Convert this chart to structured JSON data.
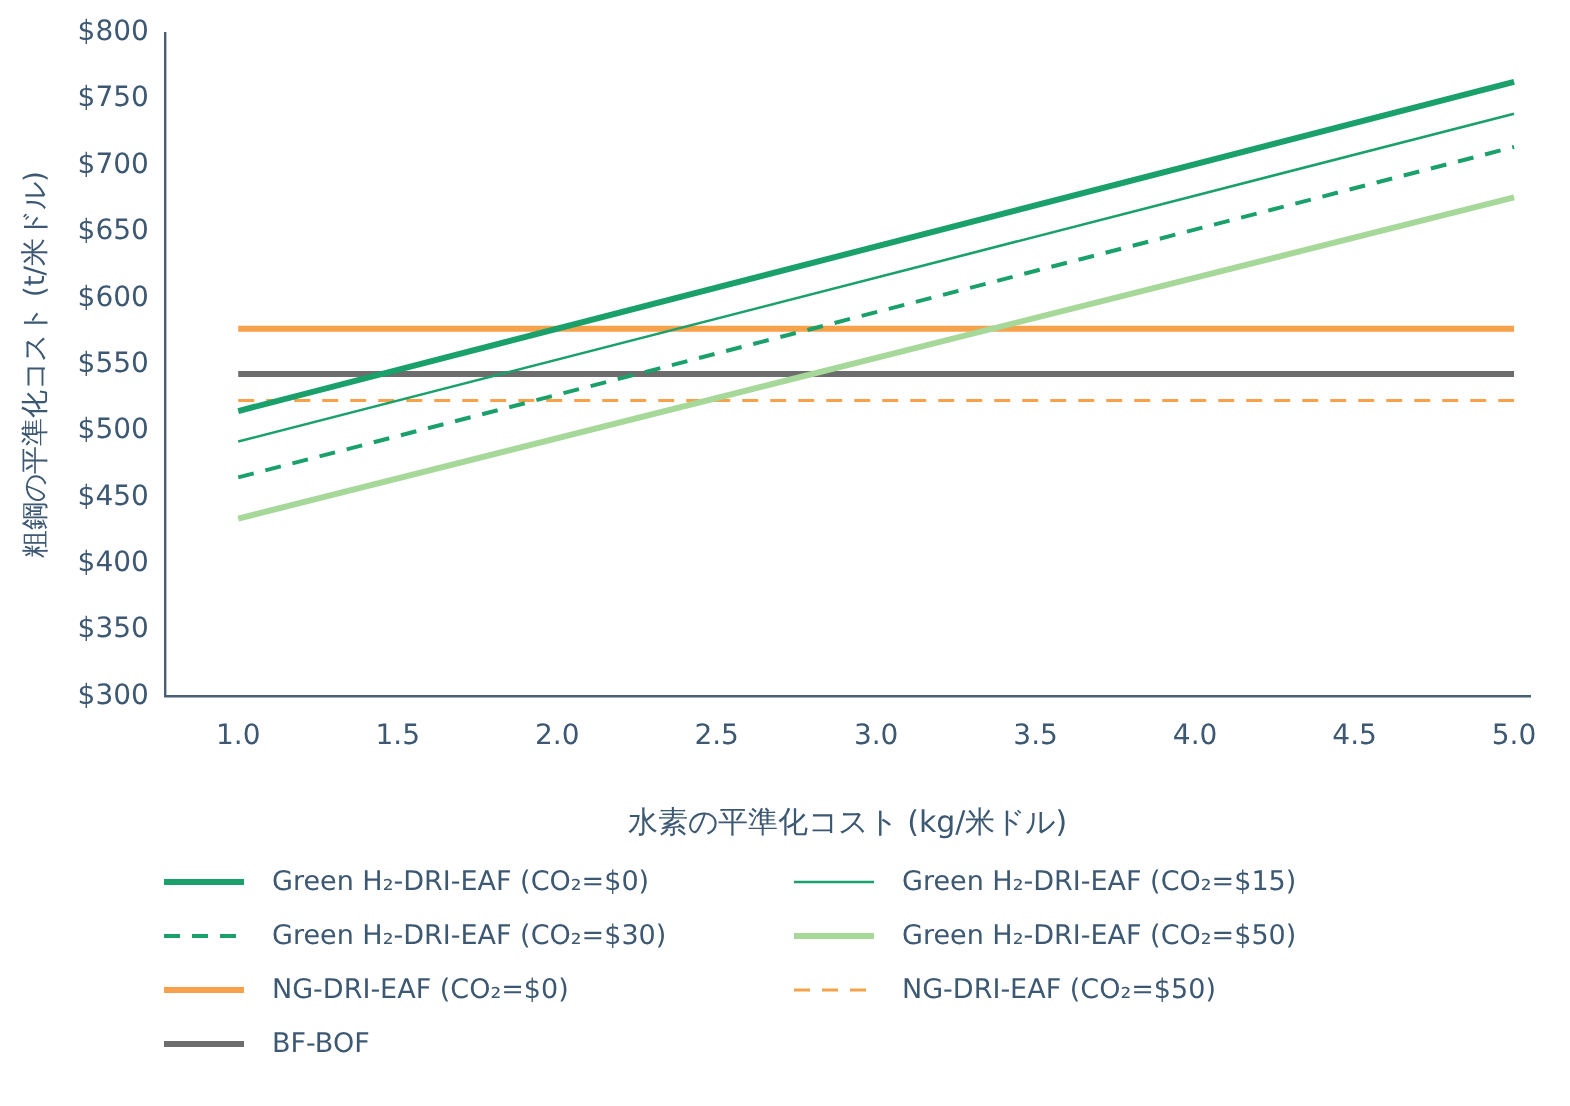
{
  "chart_data": {
    "type": "line",
    "xlabel": "水素の平準化コスト (kg/米ドル)",
    "ylabel": "粗鋼の平準化コスト (t/米ドル)",
    "x": [
      1,
      5
    ],
    "series": [
      {
        "name": "Green H₂-DRI-EAF (CO₂=$0)",
        "color": "#1aa06a",
        "values": [
          515,
          763
        ]
      },
      {
        "name": "Green H₂-DRI-EAF (CO₂=$15)",
        "color": "#1aa06a",
        "values": [
          492,
          739
        ]
      },
      {
        "name": "Green H₂-DRI-EAF (CO₂=$30)",
        "color": "#1aa06a",
        "values": [
          465,
          714
        ],
        "line_style": "dashed"
      },
      {
        "name": "Green H₂-DRI-EAF (CO₂=$50)",
        "color": "#a6d89a",
        "values": [
          434,
          676
        ]
      },
      {
        "name": "NG-DRI-EAF (CO₂=$0)",
        "color": "#f7a14a",
        "values": [
          577,
          577
        ]
      },
      {
        "name": "NG-DRI-EAF  (CO₂=$50)",
        "color": "#f7a14a",
        "values": [
          523,
          523
        ],
        "line_style": "dashed"
      },
      {
        "name": "BF-BOF",
        "color": "#6d6d6d",
        "values": [
          543,
          543
        ]
      }
    ],
    "xlim": [
      0.77,
      5.05
    ],
    "xticks": [
      {
        "value": 1,
        "label": "1.0"
      },
      {
        "value": 1.5,
        "label": "1.5"
      },
      {
        "value": 2,
        "label": "2.0"
      },
      {
        "value": 2.5,
        "label": "2.5"
      },
      {
        "value": 3,
        "label": "3.0"
      },
      {
        "value": 3.5,
        "label": "3.5"
      },
      {
        "value": 4,
        "label": "4.0"
      },
      {
        "value": 4.5,
        "label": "4.5"
      },
      {
        "value": 5,
        "label": "5.0"
      }
    ],
    "ylim": [
      300,
      800
    ],
    "yticks": [
      {
        "value": 300,
        "label": "$300"
      },
      {
        "value": 350,
        "label": "$350"
      },
      {
        "value": 400,
        "label": "$400"
      },
      {
        "value": 450,
        "label": "$450"
      },
      {
        "value": 500,
        "label": "$500"
      },
      {
        "value": 550,
        "label": "$550"
      },
      {
        "value": 600,
        "label": "$600"
      },
      {
        "value": 650,
        "label": "$650"
      },
      {
        "value": 700,
        "label": "$700"
      },
      {
        "value": 750,
        "label": "$750"
      },
      {
        "value": 800,
        "label": "$800"
      }
    ],
    "grid": false,
    "legend": "bottom",
    "marker": "none",
    "line_style": "solid"
  }
}
